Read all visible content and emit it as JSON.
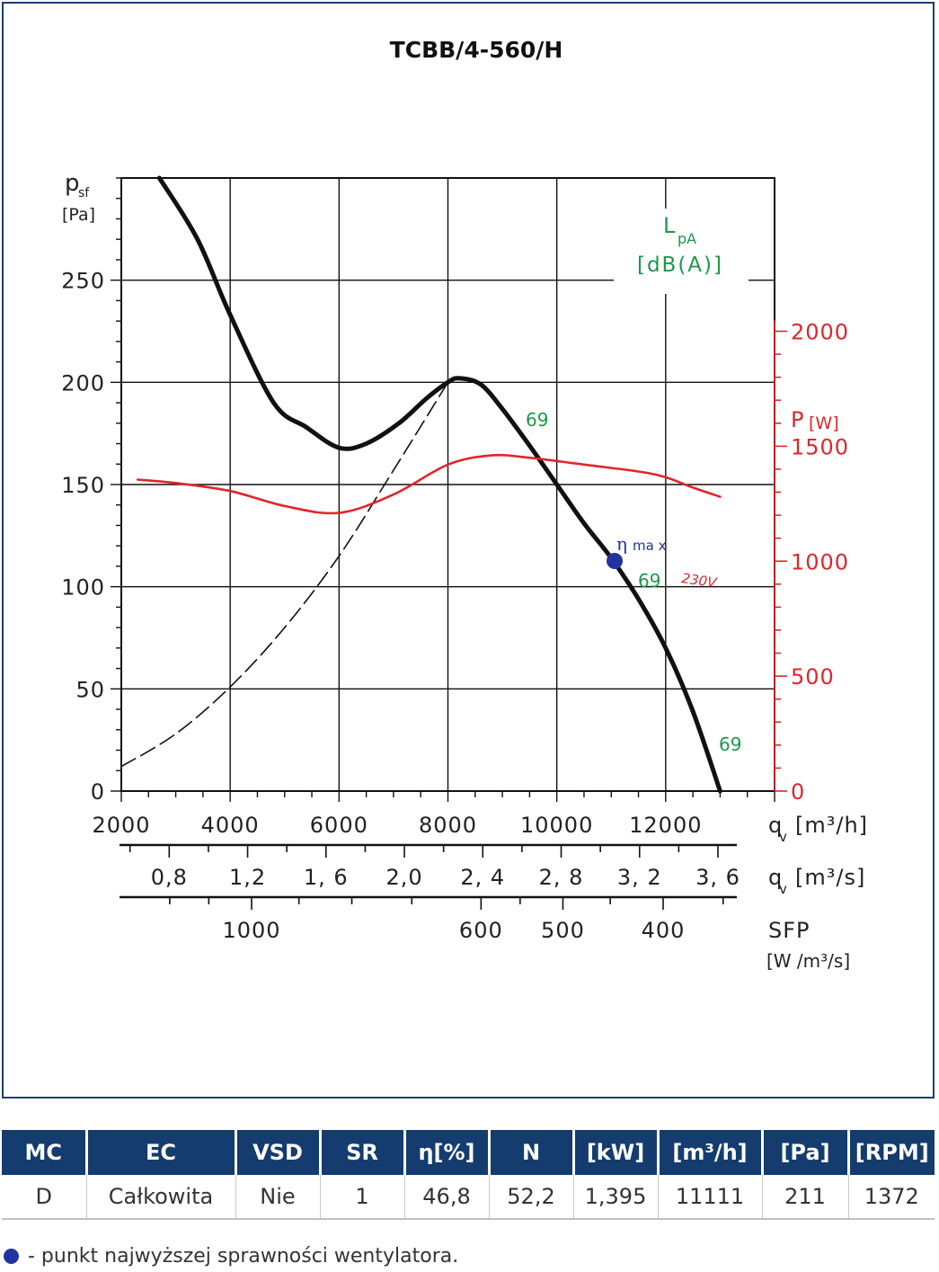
{
  "chart_data": {
    "type": "line",
    "title": "TCBB/4-560/H",
    "x_axis": {
      "label": "q",
      "label_sub": "v",
      "unit": "[m³/h]",
      "range": [
        2000,
        14000
      ],
      "ticks": [
        2000,
        4000,
        6000,
        8000,
        10000,
        12000
      ],
      "tick_labels": [
        "2000",
        "4000",
        "6000",
        "8000",
        "10000",
        "12000"
      ]
    },
    "x_axis_secondary": {
      "label": "q",
      "label_sub": "v",
      "unit": "[m³/s]",
      "ticks": [
        0.8,
        1.2,
        1.6,
        2.0,
        2.4,
        2.8,
        3.2,
        3.6
      ],
      "tick_labels": [
        "0,8",
        "1,2",
        "1, 6",
        "2,0",
        "2, 4",
        "2, 8",
        "3, 2",
        "3, 6"
      ]
    },
    "sfp_axis": {
      "label": "SFP",
      "unit": "[W /m³/s]",
      "ticks": [
        1000,
        600,
        500,
        400
      ],
      "tick_labels": [
        "1000",
        "600",
        "500",
        "400"
      ]
    },
    "y_axis": {
      "label": "p",
      "label_sub": "sf",
      "unit": "[Pa]",
      "range": [
        0,
        300
      ],
      "ticks": [
        0,
        50,
        100,
        150,
        200,
        250
      ],
      "tick_labels": [
        "0",
        "50",
        "100",
        "150",
        "200",
        "250"
      ]
    },
    "y_axis_right": {
      "label": "P",
      "unit": "[W]",
      "range": [
        0,
        2000
      ],
      "ticks": [
        0,
        500,
        1000,
        1500,
        2000
      ],
      "tick_labels": [
        "0",
        "500",
        "1000",
        "1500",
        "2000"
      ]
    },
    "lpa_label": {
      "main": "L",
      "sub": "pA",
      "unit": "[dB(A)]"
    },
    "series": [
      {
        "role": "pressure",
        "axis": "left",
        "color": "#111111",
        "points": [
          [
            2700,
            300
          ],
          [
            3400,
            270
          ],
          [
            4000,
            233
          ],
          [
            4800,
            190
          ],
          [
            5400,
            178
          ],
          [
            6000,
            168
          ],
          [
            6500,
            170
          ],
          [
            7100,
            180
          ],
          [
            7600,
            192
          ],
          [
            8000,
            200
          ],
          [
            8200,
            202
          ],
          [
            8600,
            199
          ],
          [
            9000,
            187
          ],
          [
            9500,
            169
          ],
          [
            10000,
            150
          ],
          [
            10500,
            131
          ],
          [
            11000,
            114
          ],
          [
            11500,
            94
          ],
          [
            12000,
            70
          ],
          [
            12500,
            39
          ],
          [
            13000,
            0
          ]
        ]
      },
      {
        "role": "system",
        "axis": "left",
        "color": "#111111",
        "dashed": true,
        "points": [
          [
            2000,
            12
          ],
          [
            3000,
            28
          ],
          [
            4000,
            51
          ],
          [
            5000,
            80
          ],
          [
            6000,
            115
          ],
          [
            7000,
            157
          ],
          [
            8000,
            200
          ]
        ]
      },
      {
        "role": "power",
        "axis": "right",
        "color": "#e0262b",
        "label": "230V",
        "points": [
          [
            2300,
            1355
          ],
          [
            3000,
            1340
          ],
          [
            4000,
            1305
          ],
          [
            5000,
            1240
          ],
          [
            6000,
            1210
          ],
          [
            7000,
            1290
          ],
          [
            8000,
            1420
          ],
          [
            8800,
            1460
          ],
          [
            9500,
            1450
          ],
          [
            10500,
            1420
          ],
          [
            11500,
            1390
          ],
          [
            12000,
            1365
          ],
          [
            12500,
            1320
          ],
          [
            13000,
            1280
          ]
        ]
      }
    ],
    "noise_labels": [
      {
        "text": "69",
        "x": 9200,
        "y": 182
      },
      {
        "text": "69",
        "x": 11600,
        "y": 103
      },
      {
        "text": "69",
        "x": 13200,
        "y": 20
      }
    ],
    "eta_max": {
      "label": "η",
      "label_sub": "ma x",
      "x": 11100,
      "y": 112,
      "color": "#2233a0"
    }
  },
  "table": {
    "headers": [
      "MC",
      "EC",
      "VSD",
      "SR",
      "η[%]",
      "N",
      "[kW]",
      "[m³/h]",
      "[Pa]",
      "[RPM]"
    ],
    "row": [
      "D",
      "Całkowita",
      "Nie",
      "1",
      "46,8",
      "52,2",
      "1,395",
      "11111",
      "211",
      "1372"
    ]
  },
  "legend_note": "- punkt najwyższej sprawności wentylatora."
}
